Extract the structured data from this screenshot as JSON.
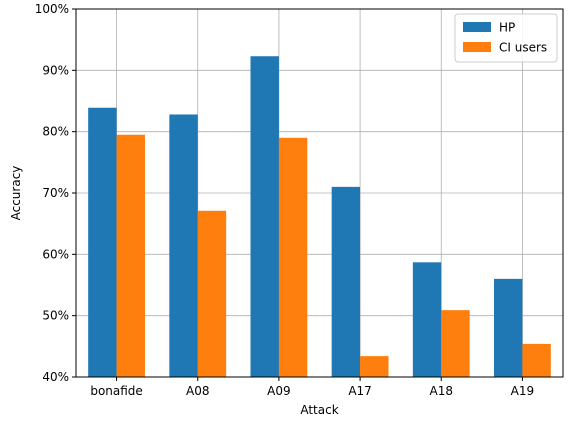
{
  "chart_data": {
    "type": "bar",
    "categories": [
      "bonafide",
      "A08",
      "A09",
      "A17",
      "A18",
      "A19"
    ],
    "series": [
      {
        "name": "HP",
        "color": "#1f77b4",
        "values": [
          83.9,
          82.8,
          92.3,
          71.0,
          58.7,
          56.0
        ]
      },
      {
        "name": "CI users",
        "color": "#ff7f0e",
        "values": [
          79.5,
          67.1,
          79.0,
          43.4,
          50.9,
          45.4
        ]
      }
    ],
    "xlabel": "Attack",
    "ylabel": "Accuracy",
    "ylim": [
      40,
      100
    ],
    "yticks": [
      40,
      50,
      60,
      70,
      80,
      90,
      100
    ],
    "ytick_labels": [
      "40%",
      "50%",
      "60%",
      "70%",
      "80%",
      "90%",
      "100%"
    ],
    "grid": true,
    "legend_position": "top-right"
  }
}
